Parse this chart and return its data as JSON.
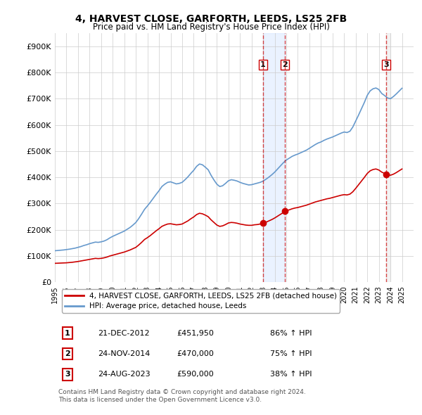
{
  "title": "4, HARVEST CLOSE, GARFORTH, LEEDS, LS25 2FB",
  "subtitle": "Price paid vs. HM Land Registry's House Price Index (HPI)",
  "ylabel": "",
  "ylim": [
    0,
    950000
  ],
  "yticks": [
    0,
    100000,
    200000,
    300000,
    400000,
    500000,
    600000,
    700000,
    800000,
    900000
  ],
  "ytick_labels": [
    "£0",
    "£100K",
    "£200K",
    "£300K",
    "£400K",
    "£500K",
    "£600K",
    "£700K",
    "£800K",
    "£900K"
  ],
  "hpi_color": "#6699cc",
  "price_color": "#cc0000",
  "transaction_color": "#cc0000",
  "vline_color": "#cc0000",
  "vline_style": "--",
  "vline_alpha": 0.7,
  "bg_color": "#ffffff",
  "grid_color": "#cccccc",
  "transactions": [
    {
      "label": "1",
      "date_num": 2012.97,
      "price": 451950,
      "text": "21-DEC-2012",
      "amount": "£451,950",
      "pct": "86% ↑ HPI"
    },
    {
      "label": "2",
      "date_num": 2014.9,
      "price": 470000,
      "text": "24-NOV-2014",
      "amount": "£470,000",
      "pct": "75% ↑ HPI"
    },
    {
      "label": "3",
      "date_num": 2023.65,
      "price": 590000,
      "text": "24-AUG-2023",
      "amount": "£590,000",
      "pct": "38% ↑ HPI"
    }
  ],
  "legend_entries": [
    {
      "label": "4, HARVEST CLOSE, GARFORTH, LEEDS, LS25 2FB (detached house)",
      "color": "#cc0000"
    },
    {
      "label": "HPI: Average price, detached house, Leeds",
      "color": "#6699cc"
    }
  ],
  "footer": [
    "Contains HM Land Registry data © Crown copyright and database right 2024.",
    "This data is licensed under the Open Government Licence v3.0."
  ],
  "hpi_data": {
    "years": [
      1995.0,
      1995.25,
      1995.5,
      1995.75,
      1996.0,
      1996.25,
      1996.5,
      1996.75,
      1997.0,
      1997.25,
      1997.5,
      1997.75,
      1998.0,
      1998.25,
      1998.5,
      1998.75,
      1999.0,
      1999.25,
      1999.5,
      1999.75,
      2000.0,
      2000.25,
      2000.5,
      2000.75,
      2001.0,
      2001.25,
      2001.5,
      2001.75,
      2002.0,
      2002.25,
      2002.5,
      2002.75,
      2003.0,
      2003.25,
      2003.5,
      2003.75,
      2004.0,
      2004.25,
      2004.5,
      2004.75,
      2005.0,
      2005.25,
      2005.5,
      2005.75,
      2006.0,
      2006.25,
      2006.5,
      2006.75,
      2007.0,
      2007.25,
      2007.5,
      2007.75,
      2008.0,
      2008.25,
      2008.5,
      2008.75,
      2009.0,
      2009.25,
      2009.5,
      2009.75,
      2010.0,
      2010.25,
      2010.5,
      2010.75,
      2011.0,
      2011.25,
      2011.5,
      2011.75,
      2012.0,
      2012.25,
      2012.5,
      2012.75,
      2013.0,
      2013.25,
      2013.5,
      2013.75,
      2014.0,
      2014.25,
      2014.5,
      2014.75,
      2015.0,
      2015.25,
      2015.5,
      2015.75,
      2016.0,
      2016.25,
      2016.5,
      2016.75,
      2017.0,
      2017.25,
      2017.5,
      2017.75,
      2018.0,
      2018.25,
      2018.5,
      2018.75,
      2019.0,
      2019.25,
      2019.5,
      2019.75,
      2020.0,
      2020.25,
      2020.5,
      2020.75,
      2021.0,
      2021.25,
      2021.5,
      2021.75,
      2022.0,
      2022.25,
      2022.5,
      2022.75,
      2023.0,
      2023.25,
      2023.5,
      2023.75,
      2024.0,
      2024.25,
      2024.5,
      2024.75,
      2025.0
    ],
    "values": [
      72000,
      72500,
      73000,
      73500,
      74000,
      75000,
      76000,
      77500,
      79000,
      81000,
      83000,
      85000,
      87000,
      89000,
      91000,
      90000,
      91000,
      93000,
      96000,
      100000,
      103000,
      106000,
      109000,
      112000,
      115000,
      119000,
      123000,
      128000,
      133000,
      142000,
      152000,
      163000,
      170000,
      178000,
      187000,
      196000,
      204000,
      213000,
      218000,
      222000,
      223000,
      221000,
      219000,
      220000,
      222000,
      228000,
      234000,
      242000,
      249000,
      258000,
      263000,
      261000,
      256000,
      250000,
      238000,
      228000,
      218000,
      213000,
      215000,
      220000,
      226000,
      228000,
      227000,
      225000,
      222000,
      220000,
      218000,
      217000,
      217000,
      219000,
      220000,
      222000,
      225000,
      229000,
      234000,
      239000,
      245000,
      252000,
      259000,
      266000,
      272000,
      276000,
      280000,
      283000,
      285000,
      288000,
      291000,
      294000,
      298000,
      302000,
      306000,
      309000,
      312000,
      315000,
      318000,
      320000,
      323000,
      326000,
      329000,
      332000,
      334000,
      333000,
      336000,
      345000,
      358000,
      372000,
      386000,
      400000,
      415000,
      425000,
      430000,
      432000,
      428000,
      420000,
      415000,
      410000,
      408000,
      412000,
      418000,
      425000,
      432000
    ]
  },
  "hpi_price_data": {
    "years": [
      1995.0,
      1995.25,
      1995.5,
      1995.75,
      1996.0,
      1996.25,
      1996.5,
      1996.75,
      1997.0,
      1997.25,
      1997.5,
      1997.75,
      1998.0,
      1998.25,
      1998.5,
      1998.75,
      1999.0,
      1999.25,
      1999.5,
      1999.75,
      2000.0,
      2000.25,
      2000.5,
      2000.75,
      2001.0,
      2001.25,
      2001.5,
      2001.75,
      2002.0,
      2002.25,
      2002.5,
      2002.75,
      2003.0,
      2003.25,
      2003.5,
      2003.75,
      2004.0,
      2004.25,
      2004.5,
      2004.75,
      2005.0,
      2005.25,
      2005.5,
      2005.75,
      2006.0,
      2006.25,
      2006.5,
      2006.75,
      2007.0,
      2007.25,
      2007.5,
      2007.75,
      2008.0,
      2008.25,
      2008.5,
      2008.75,
      2009.0,
      2009.25,
      2009.5,
      2009.75,
      2010.0,
      2010.25,
      2010.5,
      2010.75,
      2011.0,
      2011.25,
      2011.5,
      2011.75,
      2012.0,
      2012.25,
      2012.5,
      2012.75,
      2013.0,
      2013.25,
      2013.5,
      2013.75,
      2014.0,
      2014.25,
      2014.5,
      2014.75,
      2015.0,
      2015.25,
      2015.5,
      2015.75,
      2016.0,
      2016.25,
      2016.5,
      2016.75,
      2017.0,
      2017.25,
      2017.5,
      2017.75,
      2018.0,
      2018.25,
      2018.5,
      2018.75,
      2019.0,
      2019.25,
      2019.5,
      2019.75,
      2020.0,
      2020.25,
      2020.5,
      2020.75,
      2021.0,
      2021.25,
      2021.5,
      2021.75,
      2022.0,
      2022.25,
      2022.5,
      2022.75,
      2023.0,
      2023.25,
      2023.5,
      2023.75,
      2024.0,
      2024.25,
      2024.5,
      2024.75,
      2025.0
    ],
    "values": [
      120000,
      121000,
      122000,
      123000,
      124500,
      126000,
      128000,
      130000,
      133000,
      136000,
      140000,
      143000,
      147000,
      150000,
      153000,
      152000,
      154000,
      157000,
      162000,
      169000,
      175000,
      180000,
      185000,
      190000,
      195000,
      202000,
      209000,
      218000,
      228000,
      243000,
      260000,
      278000,
      291000,
      305000,
      320000,
      335000,
      349000,
      365000,
      374000,
      381000,
      383000,
      379000,
      375000,
      377000,
      381000,
      391000,
      402000,
      415000,
      427000,
      442000,
      451000,
      448000,
      439000,
      429000,
      408000,
      390000,
      374000,
      365000,
      368000,
      377000,
      387000,
      391000,
      389000,
      386000,
      381000,
      377000,
      374000,
      371000,
      372000,
      375000,
      378000,
      381000,
      386000,
      393000,
      401000,
      410000,
      420000,
      432000,
      444000,
      456000,
      466000,
      473000,
      480000,
      485000,
      489000,
      494000,
      499000,
      504000,
      511000,
      518000,
      525000,
      531000,
      535000,
      541000,
      546000,
      550000,
      554000,
      559000,
      564000,
      569000,
      573000,
      571000,
      576000,
      592000,
      615000,
      638000,
      662000,
      686000,
      713000,
      730000,
      738000,
      741000,
      735000,
      720000,
      712000,
      703000,
      700000,
      708000,
      718000,
      729000,
      740000
    ]
  }
}
